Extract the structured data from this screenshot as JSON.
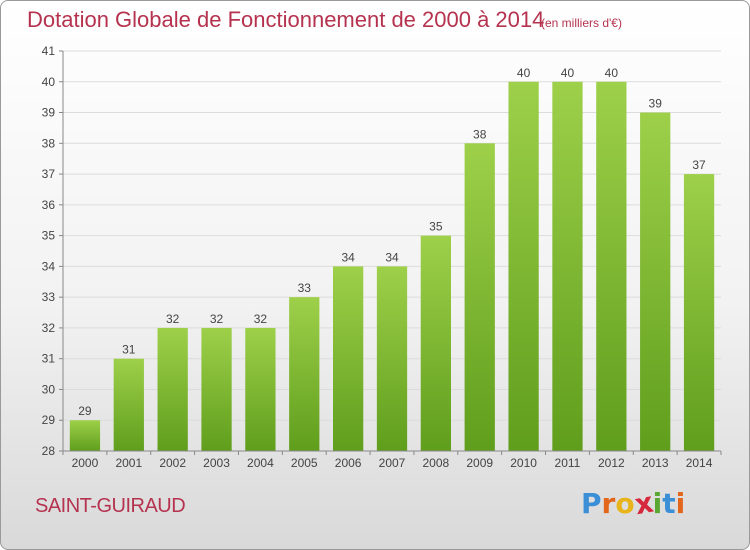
{
  "title": "Dotation Globale de Fonctionnement de 2000 à 2014",
  "subtitle": "(en milliers d'€)",
  "commune": "SAINT-GUIRAUD",
  "brand": {
    "letters": [
      "P",
      "r",
      "o",
      "x",
      "i",
      "t",
      "i"
    ],
    "colors": [
      "#3a8fd6",
      "#e2661c",
      "#e8b41c",
      "#d6283c",
      "#5aa832",
      "#3a8fd6",
      "#e2661c"
    ]
  },
  "chart_data": {
    "type": "bar",
    "categories": [
      "2000",
      "2001",
      "2002",
      "2003",
      "2004",
      "2005",
      "2006",
      "2007",
      "2008",
      "2009",
      "2010",
      "2011",
      "2012",
      "2013",
      "2014"
    ],
    "values": [
      29,
      31,
      32,
      32,
      32,
      33,
      34,
      34,
      35,
      38,
      40,
      40,
      40,
      39,
      37
    ],
    "ylim": [
      28,
      41
    ],
    "yticks": [
      28,
      29,
      30,
      31,
      32,
      33,
      34,
      35,
      36,
      37,
      38,
      39,
      40,
      41
    ],
    "grid": true,
    "bar_color_top": "#9ed04a",
    "bar_color_bottom": "#5f9e1c"
  }
}
